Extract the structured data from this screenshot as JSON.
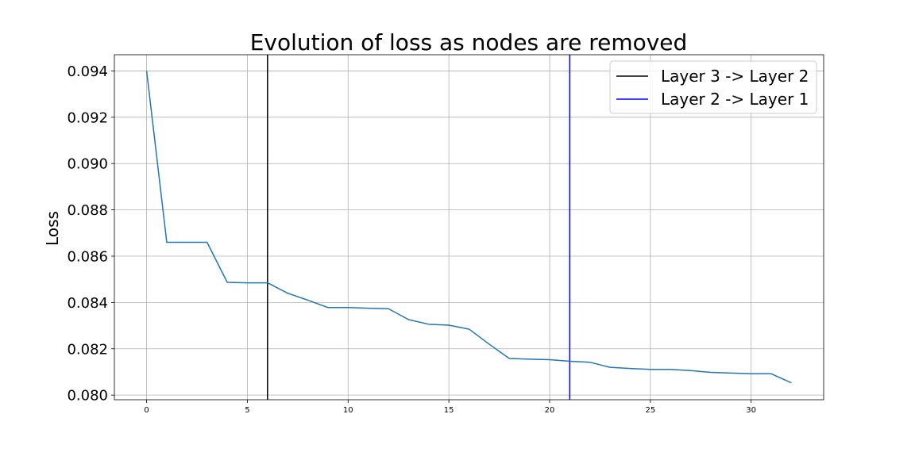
{
  "chart_data": {
    "type": "line",
    "title": "Evolution of loss as nodes are removed",
    "xlabel": "",
    "ylabel": "Loss",
    "xlim": [
      -1.6,
      33.6
    ],
    "ylim": [
      0.0798,
      0.0947
    ],
    "x_ticks": [
      0,
      5,
      10,
      15,
      20,
      25,
      30
    ],
    "y_ticks": [
      0.08,
      0.082,
      0.084,
      0.086,
      0.088,
      0.09,
      0.092,
      0.094
    ],
    "y_tick_labels": [
      "0.080",
      "0.082",
      "0.084",
      "0.086",
      "0.088",
      "0.090",
      "0.092",
      "0.094"
    ],
    "grid": true,
    "legend_position": "upper right",
    "series": [
      {
        "color": "#1f77b4",
        "x": [
          0,
          1,
          2,
          3,
          4,
          5,
          6,
          7,
          8,
          9,
          10,
          11,
          12,
          13,
          14,
          15,
          16,
          17,
          18,
          19,
          20,
          21,
          22,
          23,
          24,
          25,
          26,
          27,
          28,
          29,
          30,
          31,
          32
        ],
        "values": [
          0.094,
          0.0866,
          0.0866,
          0.0866,
          0.08487,
          0.08485,
          0.08485,
          0.0844,
          0.0841,
          0.08378,
          0.08378,
          0.08375,
          0.08373,
          0.08326,
          0.08306,
          0.08302,
          0.08285,
          0.0822,
          0.08158,
          0.08155,
          0.08153,
          0.08146,
          0.08142,
          0.0812,
          0.08115,
          0.08111,
          0.08111,
          0.08106,
          0.08098,
          0.08095,
          0.08092,
          0.08092,
          0.08053
        ]
      }
    ],
    "vertical_lines": [
      {
        "name": "Layer 3 -> Layer 2",
        "x": 6,
        "color": "#000000"
      },
      {
        "name": "Layer 2 -> Layer 1",
        "x": 21,
        "color": "#0000ff"
      }
    ]
  }
}
